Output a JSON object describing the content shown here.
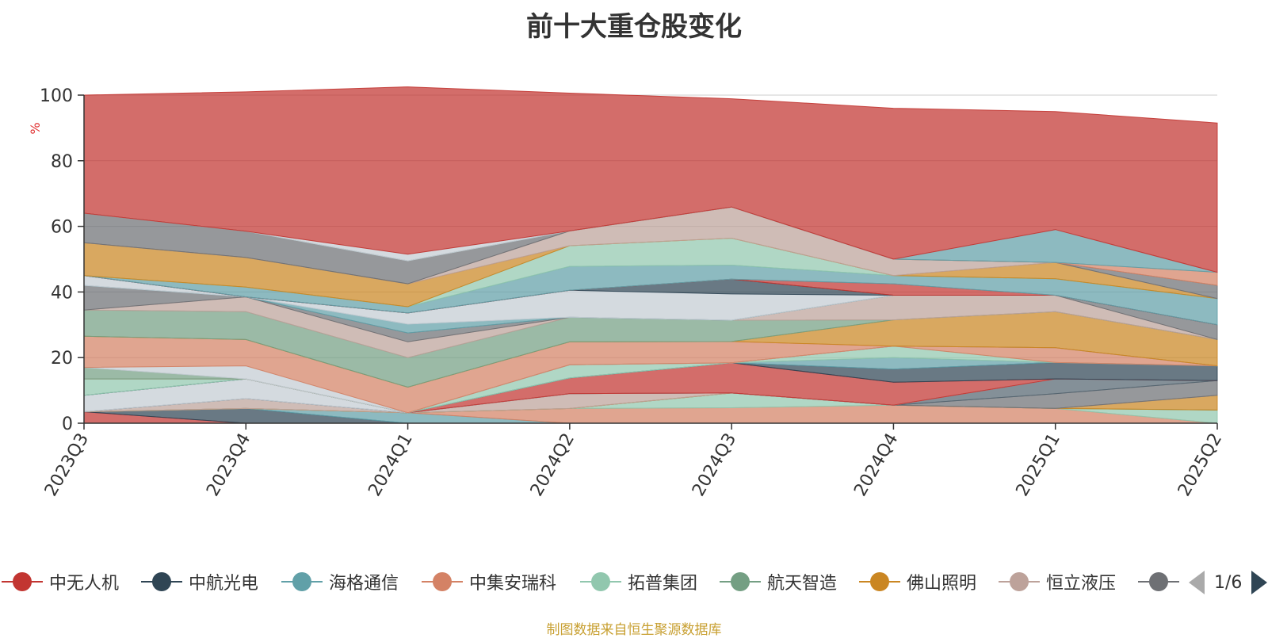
{
  "title": "前十大重仓股变化",
  "source": "制图数据来自恒生聚源数据库",
  "pager": {
    "text": "1/6"
  },
  "chart_data": {
    "type": "area",
    "stacked": true,
    "ylabel": "%",
    "ylim": [
      0,
      100
    ],
    "yticks": [
      0,
      20,
      40,
      60,
      80,
      100
    ],
    "x": [
      "2023Q3",
      "2023Q4",
      "2024Q1",
      "2024Q2",
      "2024Q3",
      "2024Q4",
      "2025Q1",
      "2025Q2"
    ],
    "legend_position": "bottom",
    "series": [
      {
        "name": "中无人机",
        "color": "#c23531",
        "values": [
          3.5,
          0,
          0,
          0,
          0,
          0,
          0,
          0
        ]
      },
      {
        "name": "中航光电",
        "color": "#2f4554",
        "values": [
          0,
          4.5,
          0,
          0,
          0,
          0,
          0,
          0
        ]
      },
      {
        "name": "海格通信",
        "color": "#61a0a8",
        "values": [
          0,
          0,
          3.2,
          0,
          0,
          0,
          0,
          0
        ]
      },
      {
        "name": "中集安瑞科",
        "color": "#d48265",
        "values": [
          0,
          0,
          0,
          4.5,
          4.7,
          5.5,
          4.5,
          0
        ]
      },
      {
        "name": "拓普集团",
        "color": "#91c7ae",
        "values": [
          0,
          0,
          0,
          0,
          4.5,
          0,
          0,
          4.0
        ]
      },
      {
        "name": "航天智造",
        "color": "#749f83",
        "values": [
          0,
          0,
          0,
          0,
          0,
          0,
          0,
          0
        ]
      },
      {
        "name": "佛山照明",
        "color": "#ca8622",
        "values": [
          0,
          0,
          0,
          0,
          0,
          0,
          0,
          4.5
        ]
      },
      {
        "name": "恒立液压",
        "color": "#bda29a",
        "values": [
          0,
          3.0,
          0,
          4.5,
          0,
          0,
          0,
          0
        ]
      },
      {
        "name": "",
        "color": "#6e7074",
        "values": [
          0,
          0,
          0,
          0,
          0,
          0,
          4.5,
          4.5
        ]
      },
      {
        "name": "",
        "color": "#546570",
        "values": [
          0,
          0,
          0,
          0,
          0,
          0,
          4.5,
          0
        ]
      },
      {
        "name": "",
        "color": "#c4ccd3",
        "values": [
          5.0,
          6.0,
          0,
          0,
          0,
          0,
          0,
          0
        ]
      },
      {
        "name": "",
        "color": "#c23531",
        "values": [
          0,
          0,
          0,
          4.8,
          9.2,
          7.0,
          0,
          0
        ]
      },
      {
        "name": "",
        "color": "#2f4554",
        "values": [
          0,
          0,
          0,
          0,
          0,
          4.0,
          5.0,
          4.5
        ]
      },
      {
        "name": "",
        "color": "#61a0a8",
        "values": [
          0,
          0,
          0,
          0,
          0,
          3.5,
          0,
          0
        ]
      },
      {
        "name": "",
        "color": "#91c7ae",
        "values": [
          5.0,
          0,
          0,
          4.0,
          0,
          3.5,
          0,
          0
        ]
      },
      {
        "name": "",
        "color": "#d48265",
        "values": [
          0,
          0,
          0,
          0,
          0,
          0,
          4.5,
          0
        ]
      },
      {
        "name": "",
        "color": "#749f83",
        "values": [
          3.5,
          0,
          0,
          0,
          0,
          0,
          0,
          0
        ]
      },
      {
        "name": "",
        "color": "#c4ccd3",
        "values": [
          0,
          4.0,
          0,
          0,
          0,
          0,
          0,
          0
        ]
      },
      {
        "name": "",
        "color": "#d48265",
        "values": [
          9.5,
          8.0,
          7.8,
          7.0,
          6.5,
          0,
          0,
          0
        ]
      },
      {
        "name": "",
        "color": "#ca8622",
        "values": [
          0,
          0,
          0,
          0,
          0,
          8.0,
          11.0,
          8.0
        ]
      },
      {
        "name": "",
        "color": "#749f83",
        "values": [
          8.0,
          8.5,
          9.0,
          7.5,
          6.5,
          0,
          0,
          0
        ]
      },
      {
        "name": "",
        "color": "#bda29a",
        "values": [
          0,
          4.5,
          4.8,
          0,
          0,
          7.5,
          5.0,
          0
        ]
      },
      {
        "name": "",
        "color": "#6e7074",
        "values": [
          7.5,
          0,
          2.7,
          0,
          0,
          0,
          0,
          4.5
        ]
      },
      {
        "name": "",
        "color": "#61a0a8",
        "values": [
          0,
          0,
          2.7,
          0,
          0,
          0,
          0,
          0
        ]
      },
      {
        "name": "",
        "color": "#c4ccd3",
        "values": [
          3.0,
          0,
          3.4,
          8.2,
          8.0,
          0,
          0,
          0
        ]
      },
      {
        "name": "",
        "color": "#2f4554",
        "values": [
          0,
          0,
          0,
          0,
          4.5,
          0,
          0,
          0
        ]
      },
      {
        "name": "",
        "color": "#c23531",
        "values": [
          0,
          0,
          0,
          0,
          0,
          3.5,
          0,
          0
        ]
      },
      {
        "name": "",
        "color": "#61a0a8",
        "values": [
          0,
          3.0,
          1.9,
          7.3,
          4.3,
          2.5,
          5.0,
          8.0
        ]
      },
      {
        "name": "",
        "color": "#91c7ae",
        "values": [
          0,
          0,
          0,
          6.3,
          8.2,
          0,
          0,
          0
        ]
      },
      {
        "name": "",
        "color": "#ca8622",
        "values": [
          10.0,
          9.0,
          7.0,
          0,
          0,
          0,
          5.0,
          0
        ]
      },
      {
        "name": "",
        "color": "#bda29a",
        "values": [
          0,
          0,
          0,
          4.5,
          9.5,
          5.0,
          0,
          0
        ]
      },
      {
        "name": "",
        "color": "#6e7074",
        "values": [
          9.0,
          8.0,
          7.0,
          0,
          0,
          0,
          0,
          4.0
        ]
      },
      {
        "name": "",
        "color": "#d48265",
        "values": [
          0,
          0,
          0,
          0,
          0,
          0,
          0,
          4.0
        ]
      },
      {
        "name": "",
        "color": "#61a0a8",
        "values": [
          0,
          0,
          0,
          0,
          0,
          0,
          10.0,
          0
        ]
      },
      {
        "name": "",
        "color": "#c4ccd3",
        "values": [
          0,
          0,
          2.0,
          0,
          0,
          0,
          0,
          0
        ]
      },
      {
        "name": "",
        "color": "#c23531",
        "values": [
          36.0,
          42.5,
          51.0,
          42.0,
          33.0,
          46.0,
          36.0,
          45.5
        ]
      }
    ]
  },
  "legend": {
    "items": [
      {
        "label": "中无人机",
        "color": "#c23531"
      },
      {
        "label": "中航光电",
        "color": "#2f4554"
      },
      {
        "label": "海格通信",
        "color": "#61a0a8"
      },
      {
        "label": "中集安瑞科",
        "color": "#d48265"
      },
      {
        "label": "拓普集团",
        "color": "#91c7ae"
      },
      {
        "label": "航天智造",
        "color": "#749f83"
      },
      {
        "label": "佛山照明",
        "color": "#ca8622"
      },
      {
        "label": "恒立液压",
        "color": "#bda29a"
      },
      {
        "label": "",
        "color": "#6e7074"
      }
    ]
  }
}
